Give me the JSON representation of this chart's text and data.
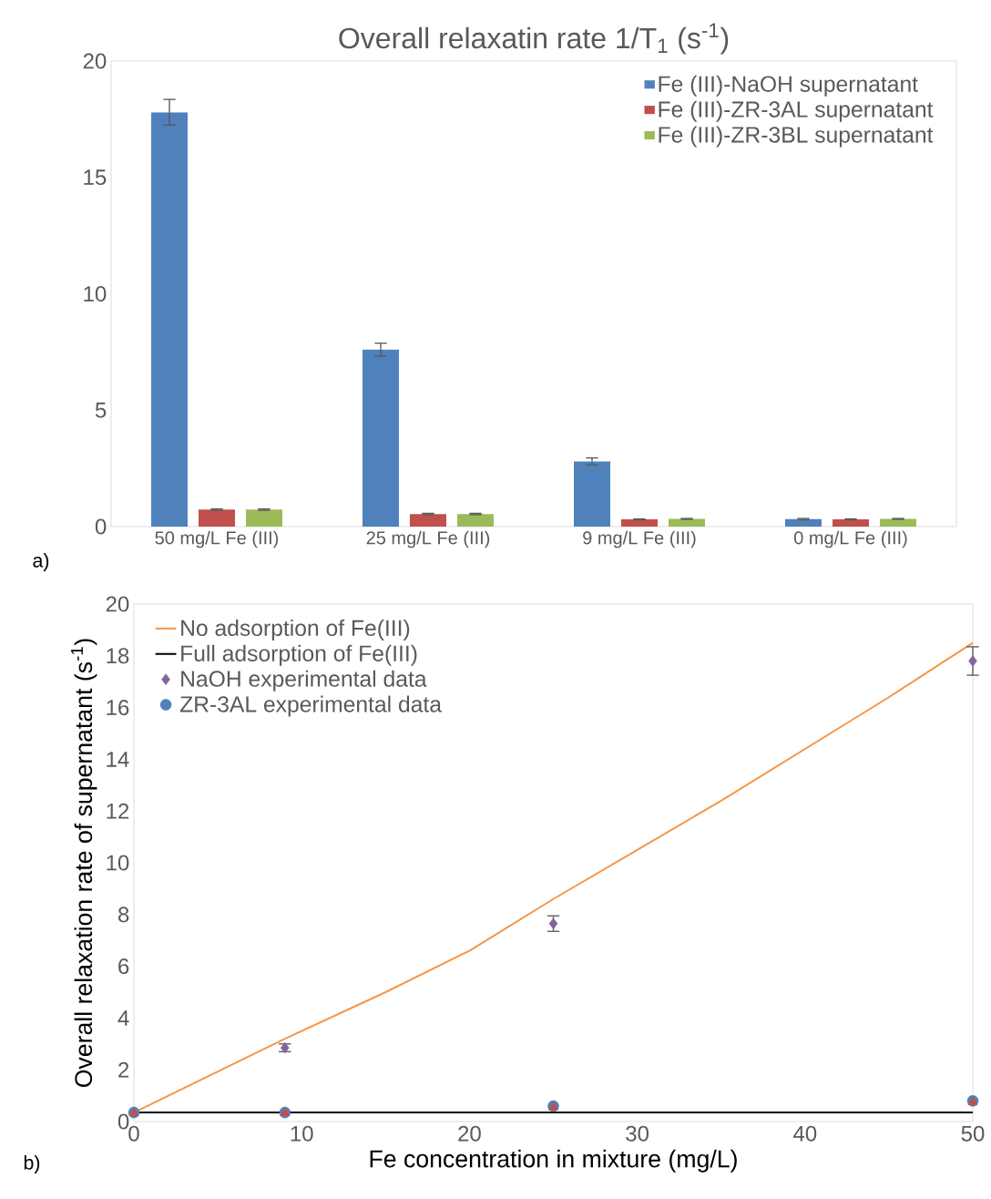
{
  "chart_data": [
    {
      "type": "bar",
      "title": "Overall relaxatin rate 1/T$_{1}$ (s$^{-1}$)",
      "categories": [
        "50 mg/L Fe (III)",
        "25 mg/L Fe (III)",
        "9 mg/L Fe (III)",
        "0 mg/L Fe (III)"
      ],
      "series": [
        {
          "name": "Fe (III)-NaOH supernatant",
          "color": "#4f81bd",
          "values": [
            17.8,
            7.6,
            2.8,
            0.32
          ],
          "errors": [
            0.55,
            0.28,
            0.15,
            0.03
          ]
        },
        {
          "name": "Fe (III)-ZR-3AL supernatant",
          "color": "#c0504d",
          "values": [
            0.73,
            0.54,
            0.31,
            0.31
          ],
          "errors": [
            0.03,
            0.03,
            0.02,
            0.02
          ]
        },
        {
          "name": "Fe (III)-ZR-3BL supernatant",
          "color": "#9bbb59",
          "values": [
            0.73,
            0.54,
            0.33,
            0.33
          ],
          "errors": [
            0.03,
            0.03,
            0.02,
            0.02
          ]
        }
      ],
      "ylim": [
        0,
        20
      ],
      "yticks": [
        0,
        5,
        10,
        15,
        20
      ],
      "legend": "top right",
      "annotations": [
        "a)"
      ]
    },
    {
      "type": "line",
      "xlabel": "Fe concentration in mixture (mg/L)",
      "ylabel": "Overall relaxation rate of supernatant (s$^{-1}$)",
      "series": [
        {
          "name": "No adsorption of Fe(III)",
          "type": "line",
          "color": "#f79646",
          "x": [
            0,
            9,
            15,
            20,
            25,
            30,
            35,
            40,
            45,
            50
          ],
          "values": [
            0.35,
            3.2,
            5.0,
            6.6,
            8.6,
            10.5,
            12.4,
            14.4,
            16.4,
            18.5
          ]
        },
        {
          "name": "Full adsorption of Fe(III)",
          "type": "line",
          "color": "#000000",
          "x": [
            0,
            50
          ],
          "values": [
            0.35,
            0.35
          ]
        },
        {
          "name": "NaOH experimental data",
          "type": "scatter",
          "marker": "diamond",
          "color": "#8064a2",
          "x": [
            9,
            25,
            50
          ],
          "values": [
            2.85,
            7.65,
            17.8
          ],
          "errors": [
            0.15,
            0.3,
            0.55
          ]
        },
        {
          "name": "ZR-3AL experimental data",
          "type": "scatter",
          "marker": "circle",
          "color": "#4f81bd",
          "x": [
            0,
            9,
            25,
            50
          ],
          "values": [
            0.35,
            0.35,
            0.6,
            0.8
          ]
        },
        {
          "type": "scatter",
          "marker": "triangle",
          "color": "#c0504d",
          "x": [
            0,
            9,
            25,
            50
          ],
          "values": [
            0.33,
            0.33,
            0.55,
            0.75
          ]
        }
      ],
      "xlim": [
        0,
        50
      ],
      "xticks": [
        0,
        10,
        20,
        30,
        40,
        50
      ],
      "ylim": [
        0,
        20
      ],
      "yticks": [
        0,
        2,
        4,
        6,
        8,
        10,
        12,
        14,
        16,
        18,
        20
      ],
      "legend": "top left",
      "annotations": [
        "b)"
      ]
    }
  ]
}
